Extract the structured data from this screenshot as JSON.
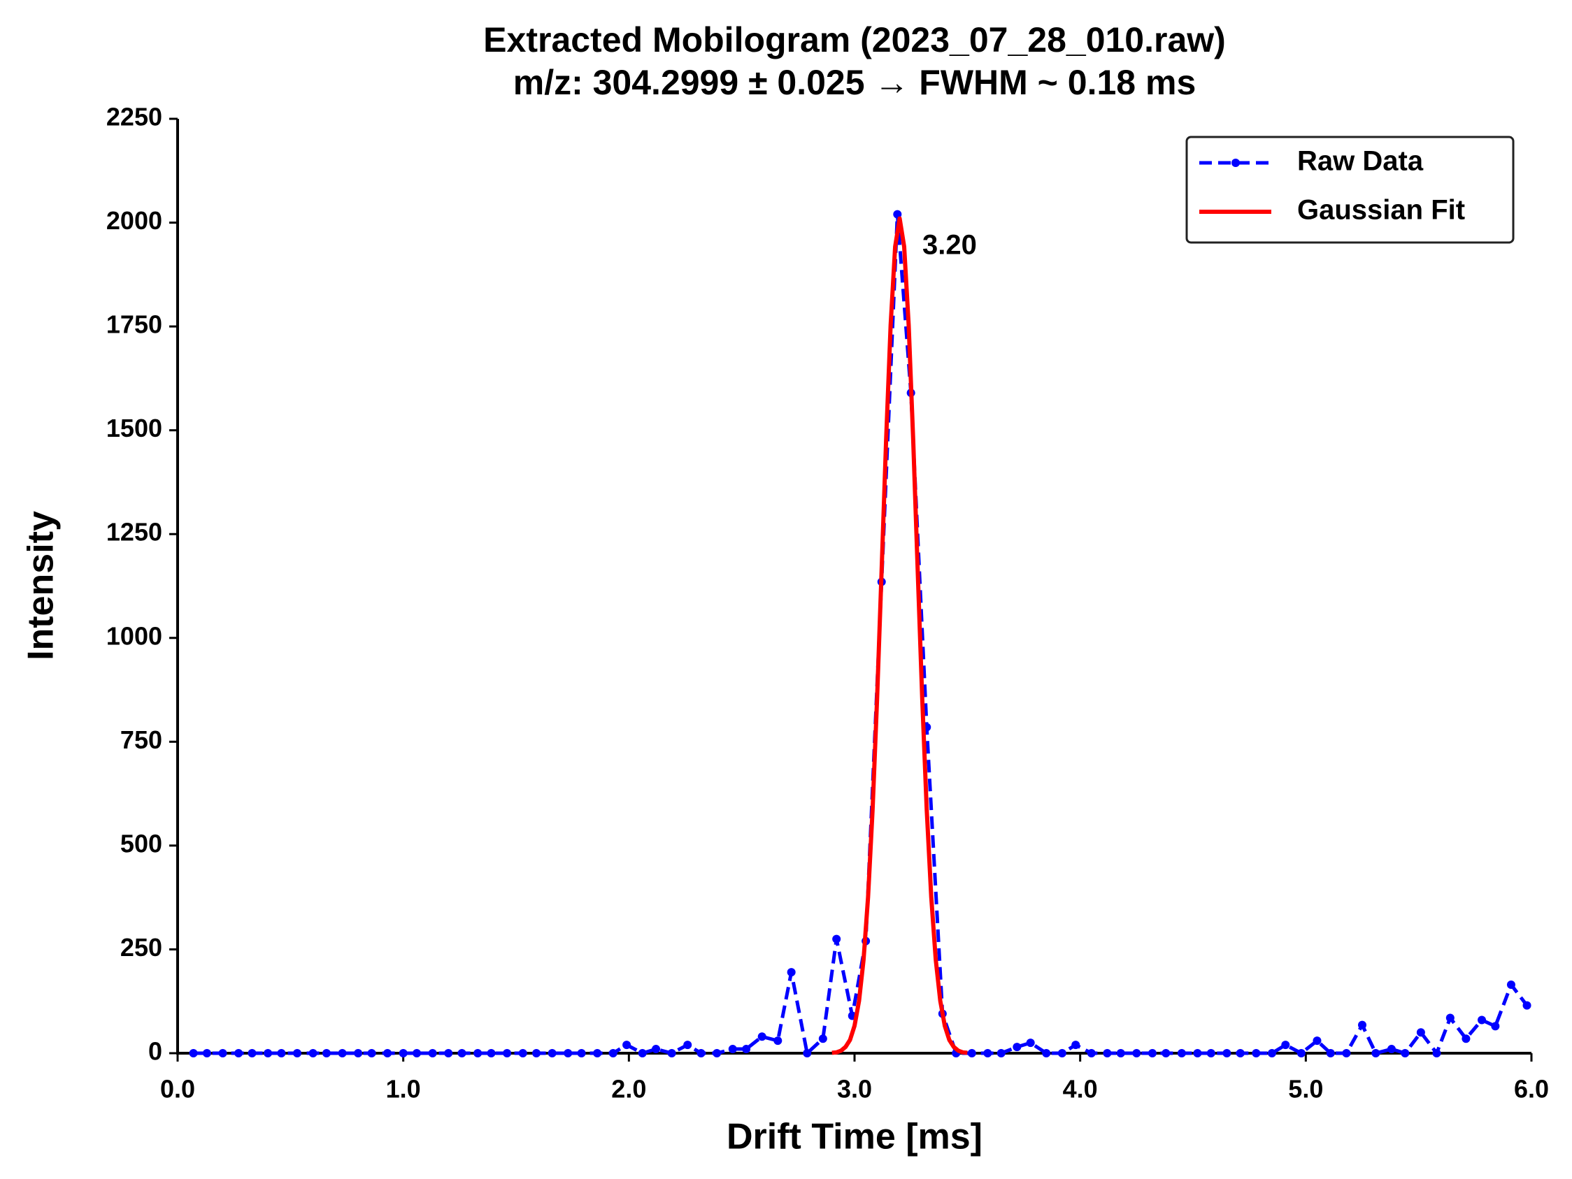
{
  "chart_data": {
    "type": "line",
    "title": "Extracted Mobilogram (2023_07_28_010.raw)",
    "subtitle": "m/z: 304.2999 ± 0.025 → FWHM ~ 0.18 ms",
    "x_label": "Drift Time [ms]",
    "y_label": "Intensity",
    "annotation": "3.20",
    "xlim": [
      0,
      6
    ],
    "ylim": [
      0,
      2250
    ],
    "xticks": [
      {
        "value": 0,
        "label": "0.0"
      },
      {
        "value": 1,
        "label": "1.0"
      },
      {
        "value": 2,
        "label": "2.0"
      },
      {
        "value": 3,
        "label": "3.0"
      },
      {
        "value": 4,
        "label": "4.0"
      },
      {
        "value": 5,
        "label": "5.0"
      },
      {
        "value": 6,
        "label": "6.0"
      }
    ],
    "yticks": [
      0,
      250,
      500,
      750,
      1000,
      1250,
      1500,
      1750,
      2000,
      2250
    ],
    "grid": false,
    "legend": "upper right",
    "series": [
      {
        "name": "Raw Data",
        "color": "#0000ff",
        "style": "dashed-markers",
        "x": [
          0.07,
          0.13,
          0.2,
          0.27,
          0.33,
          0.4,
          0.46,
          0.53,
          0.6,
          0.66,
          0.73,
          0.8,
          0.86,
          0.93,
          1.0,
          1.06,
          1.13,
          1.2,
          1.26,
          1.33,
          1.39,
          1.46,
          1.53,
          1.59,
          1.66,
          1.73,
          1.79,
          1.86,
          1.93,
          1.99,
          2.06,
          2.12,
          2.19,
          2.26,
          2.32,
          2.39,
          2.46,
          2.52,
          2.59,
          2.66,
          2.72,
          2.79,
          2.86,
          2.92,
          2.99,
          3.05,
          3.12,
          3.19,
          3.25,
          3.32,
          3.39,
          3.45,
          3.52,
          3.59,
          3.65,
          3.72,
          3.78,
          3.85,
          3.92,
          3.98,
          4.05,
          4.12,
          4.18,
          4.25,
          4.32,
          4.38,
          4.45,
          4.52,
          4.58,
          4.65,
          4.71,
          4.78,
          4.85,
          4.91,
          4.98,
          5.05,
          5.11,
          5.18,
          5.25,
          5.31,
          5.38,
          5.44,
          5.51,
          5.58,
          5.64,
          5.71,
          5.78,
          5.84,
          5.91,
          5.98
        ],
        "values": [
          0,
          0,
          0,
          0,
          0,
          0,
          0,
          0,
          0,
          0,
          0,
          0,
          0,
          0,
          0,
          0,
          0,
          0,
          0,
          0,
          0,
          0,
          0,
          0,
          0,
          0,
          0,
          0,
          0,
          20,
          0,
          10,
          0,
          20,
          0,
          0,
          10,
          10,
          40,
          30,
          195,
          0,
          35,
          275,
          90,
          270,
          1135,
          2020,
          1590,
          785,
          95,
          0,
          0,
          0,
          0,
          15,
          25,
          0,
          0,
          20,
          0,
          0,
          0,
          0,
          0,
          0,
          0,
          0,
          0,
          0,
          0,
          0,
          0,
          20,
          0,
          30,
          0,
          0,
          68,
          0,
          10,
          0,
          50,
          0,
          85,
          35,
          80,
          65,
          165,
          115
        ]
      },
      {
        "name": "Gaussian Fit",
        "color": "#ff0000",
        "style": "solid",
        "x": [
          2.9,
          2.92,
          2.94,
          2.96,
          2.98,
          3.0,
          3.02,
          3.04,
          3.06,
          3.08,
          3.1,
          3.12,
          3.14,
          3.16,
          3.18,
          3.2,
          3.22,
          3.24,
          3.26,
          3.28,
          3.3,
          3.32,
          3.34,
          3.36,
          3.38,
          3.4,
          3.42,
          3.44,
          3.46,
          3.48,
          3.5
        ],
        "values": [
          1,
          2,
          6,
          15,
          32,
          66,
          126,
          225,
          376,
          586,
          854,
          1162,
          1477,
          1753,
          1942,
          2010,
          1942,
          1753,
          1477,
          1162,
          854,
          586,
          376,
          225,
          126,
          66,
          32,
          15,
          6,
          2,
          1
        ]
      }
    ]
  }
}
